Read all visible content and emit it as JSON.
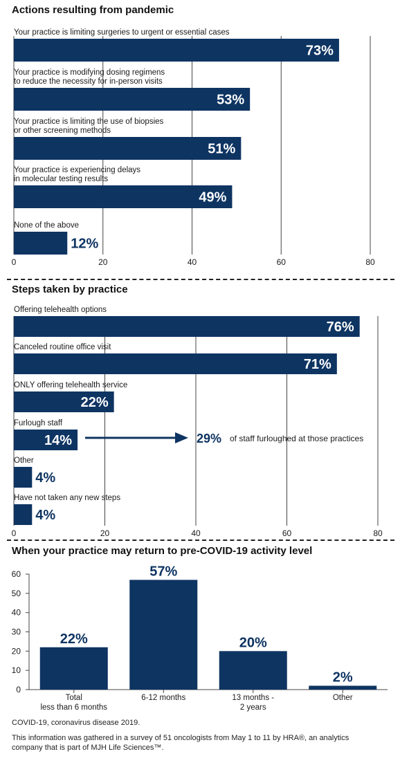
{
  "colors": {
    "bar": "#0e3462",
    "bar_label": "#ffffff",
    "text": "#1a1a1a",
    "grid": "#444444"
  },
  "chart_data": [
    {
      "type": "bar",
      "orientation": "horizontal",
      "title": "Actions resulting from pandemic",
      "categories": [
        "Your practice is limiting surgeries to urgent or essential cases",
        "Your practice is modifying dosing regimens|to reduce the necessity for in-person visits",
        "Your practice is limiting the use of biopsies|or other screening methods",
        "Your practice is experiencing delays|in molecular testing results",
        "None of the above"
      ],
      "values": [
        73,
        53,
        51,
        49,
        12
      ],
      "data_labels": [
        "73%",
        "53%",
        "51%",
        "49%",
        "12%"
      ],
      "xlim": [
        0,
        80
      ],
      "xticks": [
        "0",
        "20",
        "40",
        "60",
        "80"
      ],
      "grid": true
    },
    {
      "type": "bar",
      "orientation": "horizontal",
      "title": "Steps taken by practice",
      "categories": [
        "Offering telehealth options",
        "Canceled routine office visit",
        "ONLY offering telehealth service",
        "Furlough staff",
        "Other",
        "Have not taken any new steps"
      ],
      "values": [
        76,
        71,
        22,
        14,
        4,
        4
      ],
      "data_labels": [
        "76%",
        "71%",
        "22%",
        "14%",
        "4%",
        "4%"
      ],
      "xlim": [
        0,
        80
      ],
      "xticks": [
        "0",
        "20",
        "40",
        "60",
        "80"
      ],
      "grid": true,
      "annotation": {
        "value": "29%",
        "text": "of staff furloughed at those practices"
      }
    },
    {
      "type": "bar",
      "orientation": "vertical",
      "title": "When your practice may return to pre-COVID-19 activity level",
      "categories": [
        "Total|less than 6 months",
        "6-12 months",
        "13 months -|2 years",
        "Other"
      ],
      "values": [
        22,
        57,
        20,
        2
      ],
      "data_labels": [
        "22%",
        "57%",
        "20%",
        "2%"
      ],
      "ylim": [
        0,
        60
      ],
      "yticks": [
        "0",
        "10",
        "20",
        "30",
        "40",
        "50",
        "60"
      ],
      "grid": false
    }
  ],
  "footnotes": {
    "abbrev": "COVID-19, coronavirus disease 2019.",
    "source_line1": "This information was gathered in a survey of 51 oncologists from May 1 to 11 by HRA®, an analytics",
    "source_line2": "company that is part of MJH Life Sciences™."
  }
}
